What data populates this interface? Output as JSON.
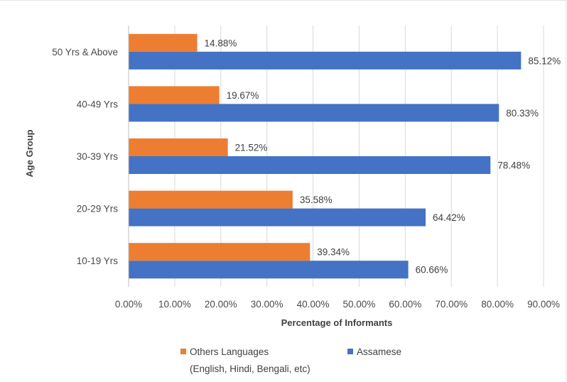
{
  "chart_data": {
    "type": "bar",
    "orientation": "horizontal",
    "categories": [
      "10-19 Yrs",
      "20-29 Yrs",
      "30-39 Yrs",
      "40-49 Yrs",
      "50 Yrs & Above"
    ],
    "series": [
      {
        "name": "Others Languages",
        "name_line2": "(English, Hindi, Bengali, etc)",
        "color": "#ED7D31",
        "values": [
          39.34,
          35.58,
          21.52,
          19.67,
          14.88
        ],
        "labels": [
          "39.34%",
          "35.58%",
          "21.52%",
          "19.67%",
          "14.88%"
        ]
      },
      {
        "name": "Assamese",
        "color": "#4472C4",
        "values": [
          60.66,
          64.42,
          78.48,
          80.33,
          85.12
        ],
        "labels": [
          "60.66%",
          "64.42%",
          "78.48%",
          "80.33%",
          "85.12%"
        ]
      }
    ],
    "xlabel": "Percentage of Informants",
    "ylabel": "Age Group",
    "xlim": [
      0,
      90
    ],
    "x_ticks": [
      0,
      10,
      20,
      30,
      40,
      50,
      60,
      70,
      80,
      90
    ],
    "x_tick_labels": [
      "0.00%",
      "10.00%",
      "20.00%",
      "30.00%",
      "40.00%",
      "50.00%",
      "60.00%",
      "70.00%",
      "80.00%",
      "90.00%"
    ],
    "grid": true,
    "legend_position": "bottom"
  }
}
